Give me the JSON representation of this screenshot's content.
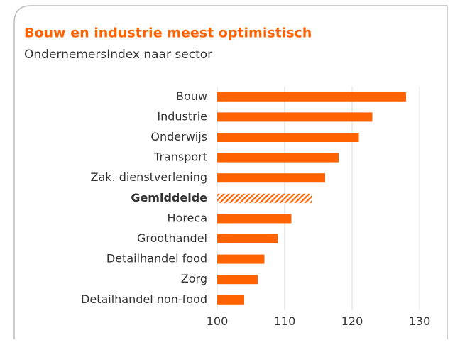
{
  "chart_data": {
    "type": "bar",
    "orientation": "horizontal",
    "title": "Bouw en industrie meest optimistisch",
    "subtitle": "OndernemersIndex naar sector",
    "categories": [
      "Bouw",
      "Industrie",
      "Onderwijs",
      "Transport",
      "Zak. dienstverlening",
      "Gemiddelde",
      "Horeca",
      "Groothandel",
      "Detailhandel food",
      "Zorg",
      "Detailhandel non-food"
    ],
    "values": [
      128,
      123,
      121,
      118,
      116,
      114,
      111,
      109,
      107,
      106,
      104
    ],
    "hatched": [
      false,
      false,
      false,
      false,
      false,
      true,
      false,
      false,
      false,
      false,
      false
    ],
    "color": "#ff6200",
    "xlim": [
      100,
      130
    ],
    "xticks": [
      100,
      110,
      120,
      130
    ],
    "grid": true
  }
}
